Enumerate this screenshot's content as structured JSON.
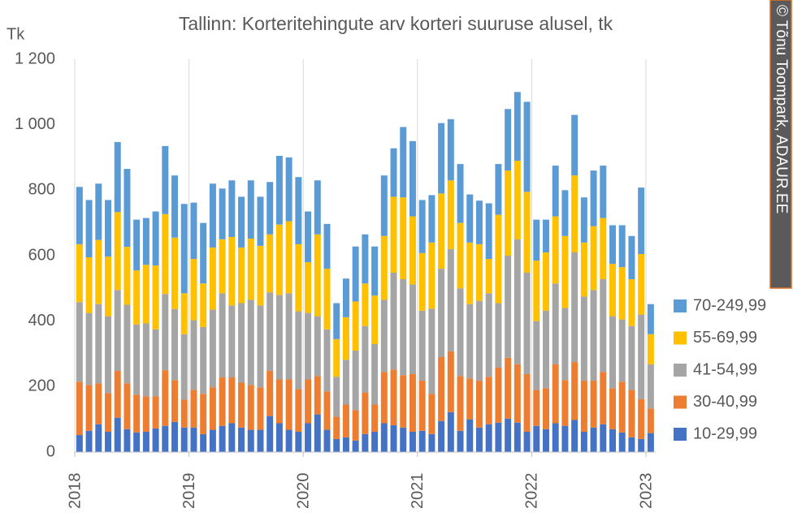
{
  "chart_data": {
    "type": "stacked_bar",
    "title": "Tallinn: Korteritehingute arv korteri suuruse alusel, tk",
    "y_label": "Tk",
    "source": "© Tõnu Toompark, ADAUR.EE",
    "categories": [
      "2018",
      null,
      null,
      null,
      null,
      null,
      null,
      null,
      null,
      null,
      null,
      null,
      "2019",
      null,
      null,
      null,
      null,
      null,
      null,
      null,
      null,
      null,
      null,
      null,
      "2020",
      null,
      null,
      null,
      null,
      null,
      null,
      null,
      null,
      null,
      null,
      null,
      "2021",
      null,
      null,
      null,
      null,
      null,
      null,
      null,
      null,
      null,
      null,
      null,
      "2022",
      null,
      null,
      null,
      null,
      null,
      null,
      null,
      null,
      null,
      null,
      null,
      "2023"
    ],
    "series": [
      {
        "name": "10-29,99",
        "color": "#4472c4",
        "values": [
          52,
          65,
          85,
          62,
          105,
          70,
          60,
          62,
          72,
          80,
          92,
          75,
          75,
          55,
          68,
          80,
          88,
          75,
          68,
          68,
          110,
          88,
          68,
          62,
          88,
          115,
          68,
          40,
          45,
          35,
          55,
          62,
          88,
          82,
          75,
          62,
          65,
          55,
          95,
          122,
          65,
          100,
          75,
          85,
          90,
          102,
          90,
          62,
          80,
          70,
          88,
          80,
          98,
          62,
          75,
          85,
          70,
          60,
          45,
          40,
          58
        ]
      },
      {
        "name": "30-40,99",
        "color": "#ed7d31",
        "values": [
          163,
          140,
          125,
          118,
          143,
          140,
          115,
          108,
          98,
          170,
          128,
          85,
          115,
          123,
          130,
          148,
          140,
          137,
          137,
          130,
          138,
          134,
          154,
          130,
          134,
          117,
          117,
          68,
          100,
          93,
          127,
          83,
          157,
          170,
          160,
          176,
          153,
          123,
          195,
          186,
          167,
          125,
          143,
          145,
          168,
          186,
          178,
          176,
          110,
          125,
          180,
          140,
          177,
          156,
          143,
          160,
          125,
          155,
          145,
          122,
          75
        ]
      },
      {
        "name": "41-54,99",
        "color": "#a5a5a5",
        "values": [
          243,
          220,
          242,
          235,
          247,
          240,
          215,
          223,
          205,
          233,
          217,
          200,
          213,
          204,
          237,
          257,
          220,
          243,
          260,
          250,
          240,
          258,
          263,
          238,
          203,
          183,
          190,
          122,
          137,
          182,
          203,
          185,
          220,
          296,
          293,
          274,
          214,
          260,
          270,
          312,
          268,
          227,
          244,
          255,
          197,
          312,
          382,
          310,
          210,
          237,
          247,
          220,
          335,
          257,
          277,
          283,
          220,
          190,
          195,
          258,
          135
        ]
      },
      {
        "name": "55-69,99",
        "color": "#ffc000",
        "values": [
          177,
          170,
          196,
          182,
          238,
          177,
          165,
          179,
          195,
          244,
          218,
          125,
          187,
          133,
          190,
          165,
          209,
          170,
          187,
          182,
          177,
          215,
          220,
          205,
          155,
          250,
          185,
          115,
          130,
          150,
          130,
          148,
          195,
          232,
          250,
          208,
          176,
          202,
          230,
          210,
          200,
          188,
          173,
          105,
          270,
          260,
          240,
          247,
          185,
          178,
          205,
          220,
          235,
          165,
          195,
          187,
          160,
          160,
          143,
          185,
          92
        ]
      },
      {
        "name": "70-249,99",
        "color": "#5b9bd5",
        "values": [
          175,
          175,
          172,
          173,
          214,
          238,
          155,
          143,
          165,
          208,
          190,
          273,
          172,
          185,
          195,
          155,
          173,
          155,
          178,
          150,
          160,
          210,
          195,
          205,
          155,
          165,
          137,
          110,
          118,
          168,
          150,
          150,
          185,
          148,
          215,
          230,
          162,
          145,
          215,
          187,
          180,
          147,
          133,
          170,
          155,
          188,
          210,
          275,
          125,
          100,
          155,
          140,
          185,
          138,
          170,
          160,
          118,
          128,
          132,
          203,
          92
        ]
      }
    ],
    "ylim": [
      0,
      1200
    ],
    "yticks": [
      0,
      200,
      400,
      600,
      800,
      {
        "value": 1000,
        "label": "1 000"
      },
      {
        "value": 1200,
        "label": "1 200"
      }
    ],
    "grid": "x",
    "legend": "right"
  }
}
